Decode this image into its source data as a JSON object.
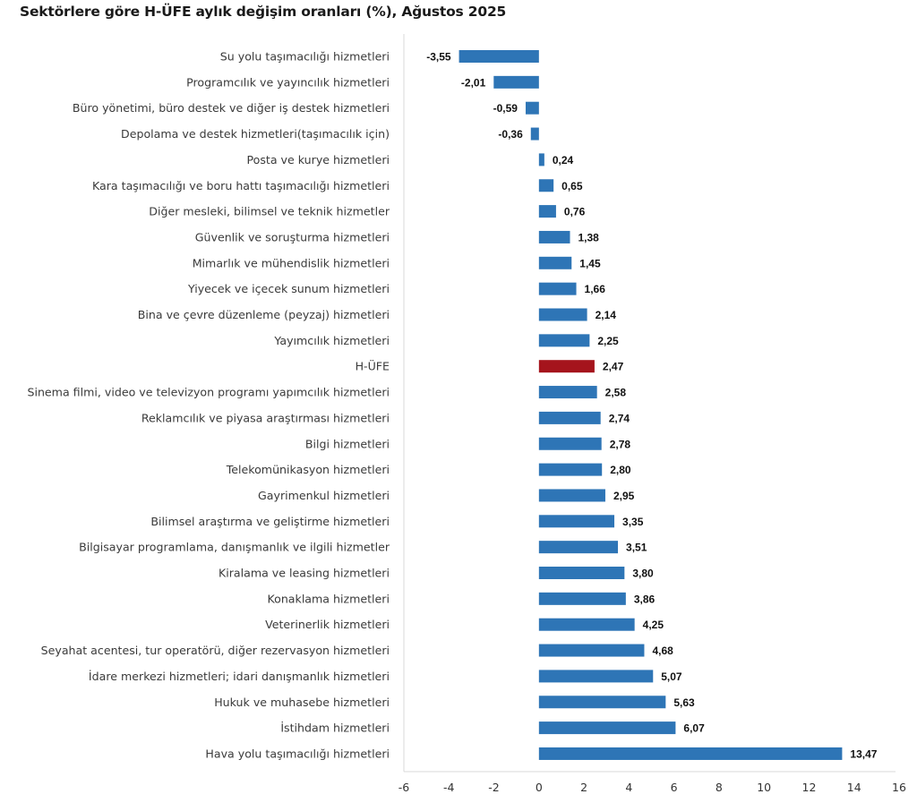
{
  "chart_data": {
    "type": "bar",
    "orientation": "horizontal",
    "title": "Sektörlere göre H-ÜFE aylık değişim oranları (%), Ağustos 2025",
    "xlabel": "",
    "ylabel": "",
    "xlim": [
      -6,
      16
    ],
    "xticks": [
      -6,
      -4,
      -2,
      0,
      2,
      4,
      6,
      8,
      10,
      12,
      14,
      16
    ],
    "grid": false,
    "legend": "none",
    "decimal_separator": ",",
    "colors": {
      "default": "#2e75b6",
      "highlight": "#a5141c"
    },
    "categories": [
      "Su yolu taşımacılığı hizmetleri",
      "Programcılık ve yayıncılık hizmetleri",
      "Büro yönetimi, büro destek ve diğer iş destek hizmetleri",
      "Depolama ve destek hizmetleri(taşımacılık için)",
      "Posta ve kurye hizmetleri",
      "Kara taşımacılığı ve boru hattı taşımacılığı hizmetleri",
      "Diğer mesleki, bilimsel ve teknik hizmetler",
      "Güvenlik ve soruşturma hizmetleri",
      "Mimarlık ve mühendislik hizmetleri",
      "Yiyecek ve içecek sunum hizmetleri",
      "Bina ve çevre düzenleme (peyzaj) hizmetleri",
      "Yayımcılık hizmetleri",
      "H-ÜFE",
      "Sinema filmi, video ve televizyon programı yapımcılık hizmetleri",
      "Reklamcılık ve piyasa araştırması hizmetleri",
      "Bilgi hizmetleri",
      "Telekomünikasyon hizmetleri",
      "Gayrimenkul hizmetleri",
      "Bilimsel araştırma ve geliştirme hizmetleri",
      "Bilgisayar programlama, danışmanlık ve ilgili hizmetler",
      "Kiralama ve leasing hizmetleri",
      "Konaklama hizmetleri",
      "Veterinerlik hizmetleri",
      "Seyahat acentesi, tur operatörü, diğer rezervasyon hizmetleri",
      "İdare merkezi hizmetleri; idari danışmanlık hizmetleri",
      "Hukuk ve muhasebe hizmetleri",
      "İstihdam hizmetleri",
      "Hava yolu taşımacılığı hizmetleri"
    ],
    "values": [
      -3.55,
      -2.01,
      -0.59,
      -0.36,
      0.24,
      0.65,
      0.76,
      1.38,
      1.45,
      1.66,
      2.14,
      2.25,
      2.47,
      2.58,
      2.74,
      2.78,
      2.8,
      2.95,
      3.35,
      3.51,
      3.8,
      3.86,
      4.25,
      4.68,
      5.07,
      5.63,
      6.07,
      13.47
    ],
    "value_labels": [
      "-3,55",
      "-2,01",
      "-0,59",
      "-0,36",
      "0,24",
      "0,65",
      "0,76",
      "1,38",
      "1,45",
      "1,66",
      "2,14",
      "2,25",
      "2,47",
      "2,58",
      "2,74",
      "2,78",
      "2,80",
      "2,95",
      "3,35",
      "3,51",
      "3,80",
      "3,86",
      "4,25",
      "4,68",
      "5,07",
      "5,63",
      "6,07",
      "13,47"
    ],
    "highlight": [
      "H-ÜFE"
    ]
  }
}
